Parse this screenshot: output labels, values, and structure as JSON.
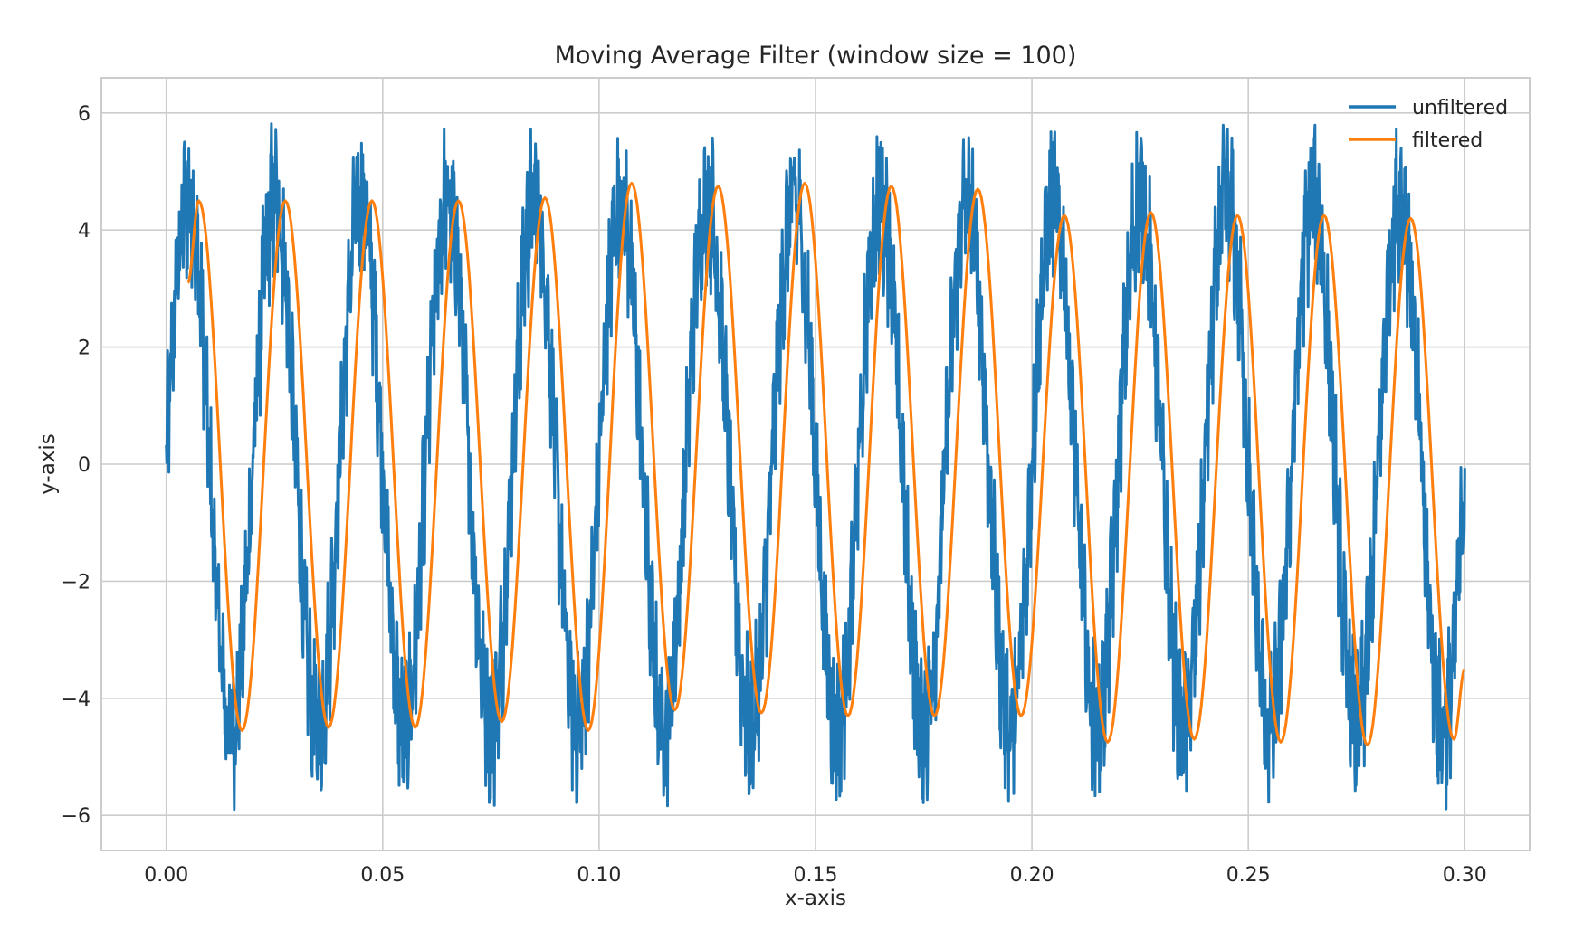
{
  "chart_data": {
    "type": "line",
    "title": "Moving Average Filter (window size = 100)",
    "xlabel": "x-axis",
    "ylabel": "y-axis",
    "xlim": [
      -0.015,
      0.315
    ],
    "ylim": [
      -6.6,
      6.6
    ],
    "x_ticks": [
      0.0,
      0.05,
      0.1,
      0.15,
      0.2,
      0.25,
      0.3
    ],
    "x_tick_labels": [
      "0.00",
      "0.05",
      "0.10",
      "0.15",
      "0.20",
      "0.25",
      "0.30"
    ],
    "y_ticks": [
      -6,
      -4,
      -2,
      0,
      2,
      4,
      6
    ],
    "y_tick_labels": [
      "−6",
      "−4",
      "−2",
      "0",
      "2",
      "4",
      "6"
    ],
    "grid": true,
    "legend_position": "upper-right",
    "series": [
      {
        "name": "unfiltered",
        "color": "#1f77b4",
        "description_values": {
          "frequency_hz": 50,
          "amplitude": 4.5,
          "noise_amplitude": 1.4,
          "x_start": 0.0,
          "x_end": 0.3
        }
      },
      {
        "name": "filtered",
        "color": "#ff7f0e",
        "x": [
          0.005,
          0.0075,
          0.0175,
          0.0275,
          0.0375,
          0.0475,
          0.0575,
          0.0675,
          0.0775,
          0.0875,
          0.0975,
          0.1075,
          0.1175,
          0.1275,
          0.1375,
          0.1475,
          0.1575,
          0.1675,
          0.1775,
          0.1875,
          0.1975,
          0.2075,
          0.2175,
          0.2275,
          0.2375,
          0.2475,
          0.2575,
          0.2675,
          0.2775,
          0.2875,
          0.2975,
          0.3
        ],
        "y": [
          3.1,
          4.5,
          -4.55,
          4.5,
          -4.5,
          4.5,
          -4.5,
          4.5,
          -4.4,
          4.55,
          -4.55,
          4.8,
          -4.2,
          4.75,
          -4.25,
          4.8,
          -4.3,
          4.75,
          -4.3,
          4.7,
          -4.3,
          4.25,
          -4.75,
          4.3,
          -4.7,
          4.25,
          -4.75,
          4.25,
          -4.8,
          4.2,
          -4.7,
          -3.5
        ]
      }
    ]
  }
}
